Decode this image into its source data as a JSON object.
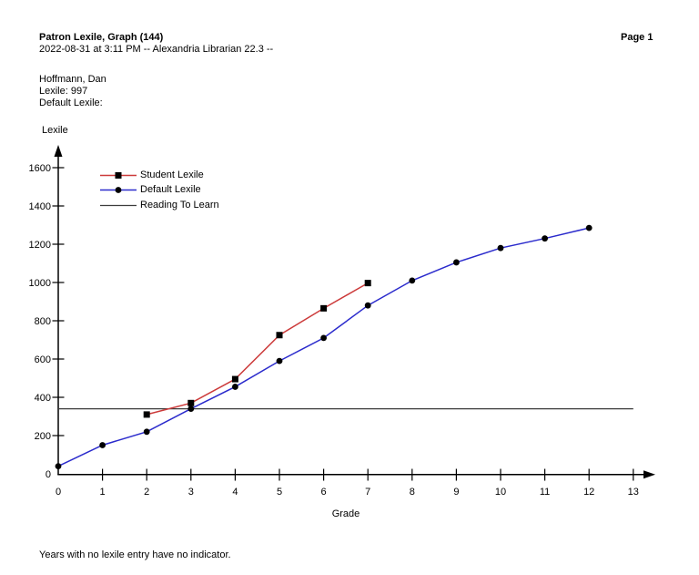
{
  "header": {
    "title": "Patron Lexile, Graph (144)",
    "page_label": "Page 1",
    "subtitle": "2022-08-31 at 3:11 PM -- Alexandria Librarian 22.3 --"
  },
  "patron": {
    "name": "Hoffmann, Dan",
    "lexile": "Lexile: 997",
    "default_lexile": "Default Lexile:"
  },
  "footer": {
    "note": "Years with no lexile entry have no indicator."
  },
  "chart_data": {
    "type": "line",
    "title": "",
    "xlabel": "Grade",
    "ylabel": "Lexile",
    "xlim": [
      0,
      13
    ],
    "ylim": [
      0,
      1600
    ],
    "x_ticks": [
      0,
      1,
      2,
      3,
      4,
      5,
      6,
      7,
      8,
      9,
      10,
      11,
      12,
      13
    ],
    "y_ticks": [
      0,
      200,
      400,
      600,
      800,
      1000,
      1200,
      1400,
      1600
    ],
    "grid": false,
    "legend_position": "top-left-inside",
    "axis_color": "#000000",
    "series": [
      {
        "name": "Student Lexile",
        "color": "#cc3a3a",
        "marker": "square",
        "marker_color": "#000000",
        "x": [
          2,
          3,
          4,
          5,
          6,
          7
        ],
        "values": [
          310,
          370,
          495,
          725,
          865,
          997
        ]
      },
      {
        "name": "Default Lexile",
        "color": "#2b2bcc",
        "marker": "circle",
        "marker_color": "#000000",
        "x": [
          0,
          1,
          2,
          3,
          4,
          5,
          6,
          7,
          8,
          9,
          10,
          11,
          12
        ],
        "values": [
          40,
          150,
          220,
          340,
          455,
          590,
          710,
          880,
          1010,
          1105,
          1180,
          1230,
          1285
        ]
      },
      {
        "name": "Reading To Learn",
        "color": "#3c3c3c",
        "marker": "none",
        "type": "hline",
        "value": 340
      }
    ]
  }
}
